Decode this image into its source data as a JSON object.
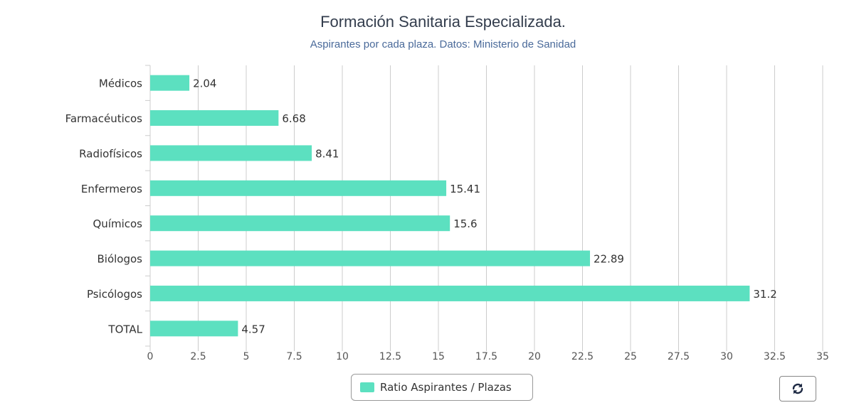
{
  "chart_data": {
    "type": "bar",
    "orientation": "horizontal",
    "title": "Formación Sanitaria Especializada.",
    "subtitle": "Aspirantes por cada plaza. Datos: Ministerio de Sanidad",
    "categories": [
      "Médicos",
      "Farmacéuticos",
      "Radiofísicos",
      "Enfermeros",
      "Químicos",
      "Biólogos",
      "Psicólogos",
      "TOTAL"
    ],
    "series": [
      {
        "name": "Ratio Aspirantes / Plazas",
        "values": [
          2.04,
          6.68,
          8.41,
          15.41,
          15.6,
          22.89,
          31.2,
          4.57
        ],
        "color": "#5ce0c0"
      }
    ],
    "data_labels": [
      "2.04",
      "6.68",
      "8.41",
      "15.41",
      "15.6",
      "22.89",
      "31.2",
      "4.57"
    ],
    "x_ticks": [
      "0",
      "2.5",
      "5",
      "7.5",
      "10",
      "12.5",
      "15",
      "17.5",
      "20",
      "22.5",
      "25",
      "27.5",
      "30",
      "32.5",
      "35"
    ],
    "xlim": [
      0,
      35
    ],
    "grid": true,
    "legend": "bottom-center"
  },
  "legend": {
    "label": "Ratio Aspirantes / Plazas"
  },
  "toolbar": {
    "refresh_icon": "refresh-icon"
  },
  "colors": {
    "bar": "#5ce0c0",
    "grid": "#cccccc",
    "title": "#333d4d",
    "subtitle": "#4a6a9a"
  }
}
